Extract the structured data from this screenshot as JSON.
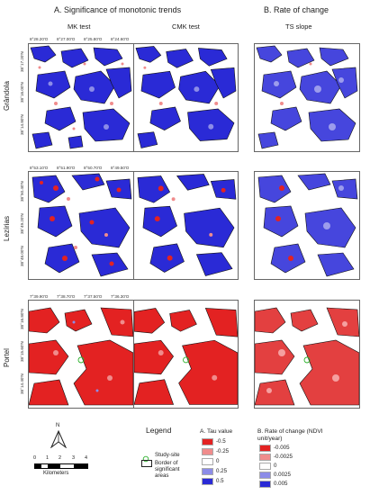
{
  "headers": {
    "a": "A. Significance of monotonic trends",
    "b": "B. Rate of change"
  },
  "columns": [
    "MK test",
    "CMK test",
    "TS slope"
  ],
  "rows": [
    {
      "label": "Grândola",
      "top_coords": [
        "8°28.20'O",
        "8°27.00'O",
        "8°25.80'O",
        "8°24.60'O"
      ],
      "side_coords": [
        "38°17.20'N",
        "38°16.00'N",
        "38°14.80'N"
      ],
      "dominant": "blue"
    },
    {
      "label": "Lezírias",
      "top_coords": [
        "8°53.10'O",
        "8°51.90'O",
        "8°50.70'O",
        "8°49.50'O"
      ],
      "side_coords": [
        "38°50.40'N",
        "38°49.20'N",
        "38°48.00'N"
      ],
      "dominant": "blue-mixed"
    },
    {
      "label": "Portel",
      "top_coords": [
        "7°39.90'O",
        "7°38.70'O",
        "7°37.50'O",
        "7°36.30'O"
      ],
      "side_coords": [
        "38°16.80'N",
        "38°15.60'N",
        "38°14.40'N"
      ],
      "dominant": "red"
    }
  ],
  "north_arrow": "N",
  "scale": {
    "ticks": [
      "0",
      "1",
      "2",
      "3",
      "4"
    ],
    "unit": "Kilometers"
  },
  "legend": {
    "title": "Legend",
    "study_site": "Study-site",
    "border": "Border of significant areas",
    "tau": {
      "title": "A. Tau value",
      "items": [
        {
          "label": "-0.5",
          "color": "#e32222"
        },
        {
          "label": "-0.25",
          "color": "#f08c8c"
        },
        {
          "label": "0",
          "color": "#ffffff"
        },
        {
          "label": "0.25",
          "color": "#8c8ce8"
        },
        {
          "label": "0.5",
          "color": "#2a2ad6"
        }
      ]
    },
    "rate": {
      "title": "B. Rate of change (NDVI unit/year)",
      "items": [
        {
          "label": "-0.005",
          "color": "#e32222"
        },
        {
          "label": "-0.0025",
          "color": "#f08c8c"
        },
        {
          "label": "0",
          "color": "#ffffff"
        },
        {
          "label": "0.0025",
          "color": "#8c8ce8"
        },
        {
          "label": "0.005",
          "color": "#2a2ad6"
        }
      ]
    }
  }
}
